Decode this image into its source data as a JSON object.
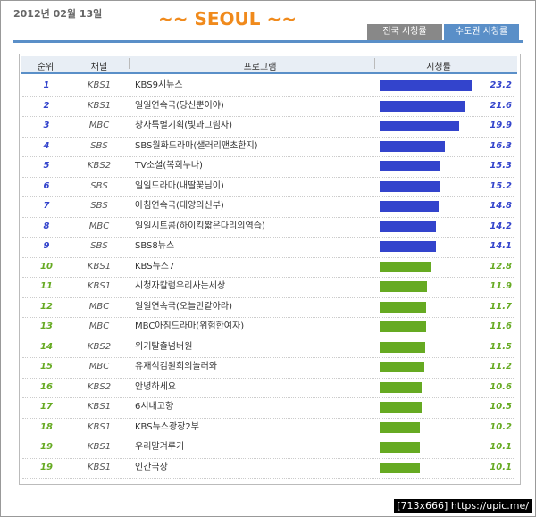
{
  "header": {
    "date": "2012년 02월 13일",
    "title": "~~ SEOUL ~~",
    "tabs": [
      "전국 시청률",
      "수도권 시청률"
    ],
    "active_tab": 1
  },
  "table": {
    "columns": [
      "순위",
      "채널",
      "프로그램",
      "시청률"
    ],
    "rows": [
      {
        "rank": 1,
        "channel": "KBS1",
        "program": "KBS9시뉴스",
        "rating": 23.2,
        "color": "#3344cc"
      },
      {
        "rank": 2,
        "channel": "KBS1",
        "program": "일일연속극(당신뿐이야)",
        "rating": 21.6,
        "color": "#3344cc"
      },
      {
        "rank": 3,
        "channel": "MBC",
        "program": "창사특별기획(빛과그림자)",
        "rating": 19.9,
        "color": "#3344cc"
      },
      {
        "rank": 4,
        "channel": "SBS",
        "program": "SBS월화드라마(샐러리맨초한지)",
        "rating": 16.3,
        "color": "#3344cc"
      },
      {
        "rank": 5,
        "channel": "KBS2",
        "program": "TV소설(복희누나)",
        "rating": 15.3,
        "color": "#3344cc"
      },
      {
        "rank": 6,
        "channel": "SBS",
        "program": "일일드라마(내딸꽃님이)",
        "rating": 15.2,
        "color": "#3344cc"
      },
      {
        "rank": 7,
        "channel": "SBS",
        "program": "아침연속극(태양의신부)",
        "rating": 14.8,
        "color": "#3344cc"
      },
      {
        "rank": 8,
        "channel": "MBC",
        "program": "일일시트콤(하이킥짧은다리의역습)",
        "rating": 14.2,
        "color": "#3344cc"
      },
      {
        "rank": 9,
        "channel": "SBS",
        "program": "SBS8뉴스",
        "rating": 14.1,
        "color": "#3344cc"
      },
      {
        "rank": 10,
        "channel": "KBS1",
        "program": "KBS뉴스7",
        "rating": 12.8,
        "color": "#66aa22"
      },
      {
        "rank": 11,
        "channel": "KBS1",
        "program": "시청자칼럼우리사는세상",
        "rating": 11.9,
        "color": "#66aa22"
      },
      {
        "rank": 12,
        "channel": "MBC",
        "program": "일일연속극(오늘만같아라)",
        "rating": 11.7,
        "color": "#66aa22"
      },
      {
        "rank": 13,
        "channel": "MBC",
        "program": "MBC아침드라마(위험한여자)",
        "rating": 11.6,
        "color": "#66aa22"
      },
      {
        "rank": 14,
        "channel": "KBS2",
        "program": "위기탈출넘버원",
        "rating": 11.5,
        "color": "#66aa22"
      },
      {
        "rank": 15,
        "channel": "MBC",
        "program": "유재석김원희의놀러와",
        "rating": 11.2,
        "color": "#66aa22"
      },
      {
        "rank": 16,
        "channel": "KBS2",
        "program": "안녕하세요",
        "rating": 10.6,
        "color": "#66aa22"
      },
      {
        "rank": 17,
        "channel": "KBS1",
        "program": "6시내고향",
        "rating": 10.5,
        "color": "#66aa22"
      },
      {
        "rank": 18,
        "channel": "KBS1",
        "program": "KBS뉴스광장2부",
        "rating": 10.2,
        "color": "#66aa22"
      },
      {
        "rank": 19,
        "channel": "KBS1",
        "program": "우리말겨루기",
        "rating": 10.1,
        "color": "#66aa22"
      },
      {
        "rank": 19,
        "channel": "KBS1",
        "program": "인간극장",
        "rating": 10.1,
        "color": "#66aa22"
      }
    ]
  },
  "watermark": "[713x666] https://upic.me/"
}
